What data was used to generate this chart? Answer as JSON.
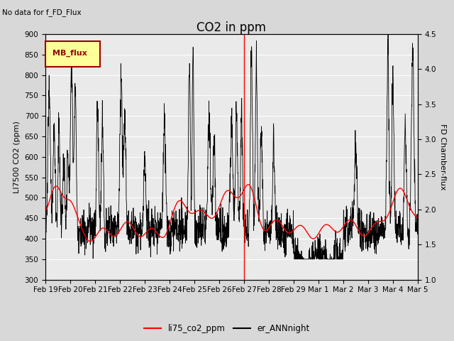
{
  "title": "CO2 in ppm",
  "subtitle": "No data for f_FD_Flux",
  "ylabel_left": "LI7500 CO2 (ppm)",
  "ylabel_right": "FD Chamber-flux",
  "ylim_left": [
    300,
    900
  ],
  "ylim_right": [
    1.0,
    4.5
  ],
  "yticks_left": [
    300,
    350,
    400,
    450,
    500,
    550,
    600,
    650,
    700,
    750,
    800,
    850,
    900
  ],
  "yticks_right": [
    1.0,
    1.5,
    2.0,
    2.5,
    3.0,
    3.5,
    4.0,
    4.5
  ],
  "legend_labels": [
    "li75_co2_ppm",
    "er_ANNnight"
  ],
  "vline_color": "red",
  "vline_x": 8.0,
  "background_color": "#d8d8d8",
  "plot_bg_color": "#eaeaea",
  "legend_box_facecolor": "#ffff99",
  "legend_box_edgecolor": "#990000",
  "legend_box_textcolor": "#990000",
  "legend_box_label": "MB_flux",
  "xtick_labels": [
    "Feb 19",
    "Feb 20",
    "Feb 21",
    "Feb 22",
    "Feb 23",
    "Feb 24",
    "Feb 25",
    "Feb 26",
    "Feb 27",
    "Feb 28",
    "Feb 29",
    "Mar 1",
    "Mar 2",
    "Mar 3",
    "Mar 4",
    "Mar 5"
  ],
  "fontsize_title": 12,
  "fontsize_labels": 8,
  "fontsize_ticks": 7.5,
  "n_points": 2000
}
